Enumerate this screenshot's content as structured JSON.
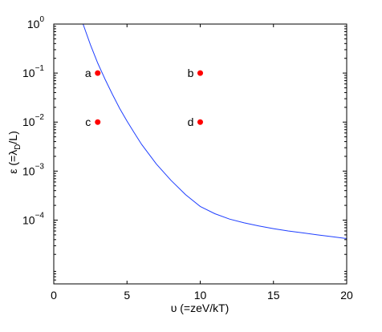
{
  "chart_data": {
    "type": "scatter",
    "title": "",
    "xlabel": "υ (=zeV/kT)",
    "ylabel": {
      "prefix": "ε (=λ",
      "subscript": "D",
      "suffix": "/L)"
    },
    "xlim": [
      0,
      20
    ],
    "ylim": [
      5e-06,
      1
    ],
    "yscale": "log",
    "grid": false,
    "x_ticks": [
      {
        "value": 0,
        "label": "0"
      },
      {
        "value": 5,
        "label": "5"
      },
      {
        "value": 10,
        "label": "10"
      },
      {
        "value": 15,
        "label": "15"
      },
      {
        "value": 20,
        "label": "20"
      }
    ],
    "y_ticks": [
      {
        "value": 1,
        "base": "10",
        "exponent": "0"
      },
      {
        "value": 0.1,
        "base": "10",
        "exponent": "−1"
      },
      {
        "value": 0.01,
        "base": "10",
        "exponent": "−2"
      },
      {
        "value": 0.001,
        "base": "10",
        "exponent": "−3"
      },
      {
        "value": 0.0001,
        "base": "10",
        "exponent": "−4"
      }
    ],
    "curve": {
      "color": "#1f3fff",
      "points": [
        [
          2.0,
          1.0
        ],
        [
          2.5,
          0.38
        ],
        [
          3.0,
          0.16
        ],
        [
          3.5,
          0.075
        ],
        [
          4.0,
          0.037
        ],
        [
          4.5,
          0.019
        ],
        [
          5.0,
          0.0105
        ],
        [
          5.5,
          0.006
        ],
        [
          6.0,
          0.0035
        ],
        [
          7.0,
          0.0014
        ],
        [
          8.0,
          0.00065
        ],
        [
          9.0,
          0.00033
        ],
        [
          10.0,
          0.00019
        ],
        [
          11.0,
          0.000135
        ],
        [
          12.0,
          0.000105
        ],
        [
          13.0,
          8.8e-05
        ],
        [
          14.0,
          7.6e-05
        ],
        [
          15.0,
          6.7e-05
        ],
        [
          16.0,
          6e-05
        ],
        [
          17.0,
          5.5e-05
        ],
        [
          18.0,
          5e-05
        ],
        [
          19.0,
          4.6e-05
        ],
        [
          20.0,
          4.2e-05
        ]
      ]
    },
    "points": [
      {
        "label": "a",
        "x": 3,
        "y": 0.1,
        "label_side": "left"
      },
      {
        "label": "b",
        "x": 10,
        "y": 0.1,
        "label_side": "left"
      },
      {
        "label": "c",
        "x": 3,
        "y": 0.01,
        "label_side": "left"
      },
      {
        "label": "d",
        "x": 10,
        "y": 0.01,
        "label_side": "left"
      }
    ],
    "point_color": "#ff0000",
    "axis_color": "#000000"
  }
}
